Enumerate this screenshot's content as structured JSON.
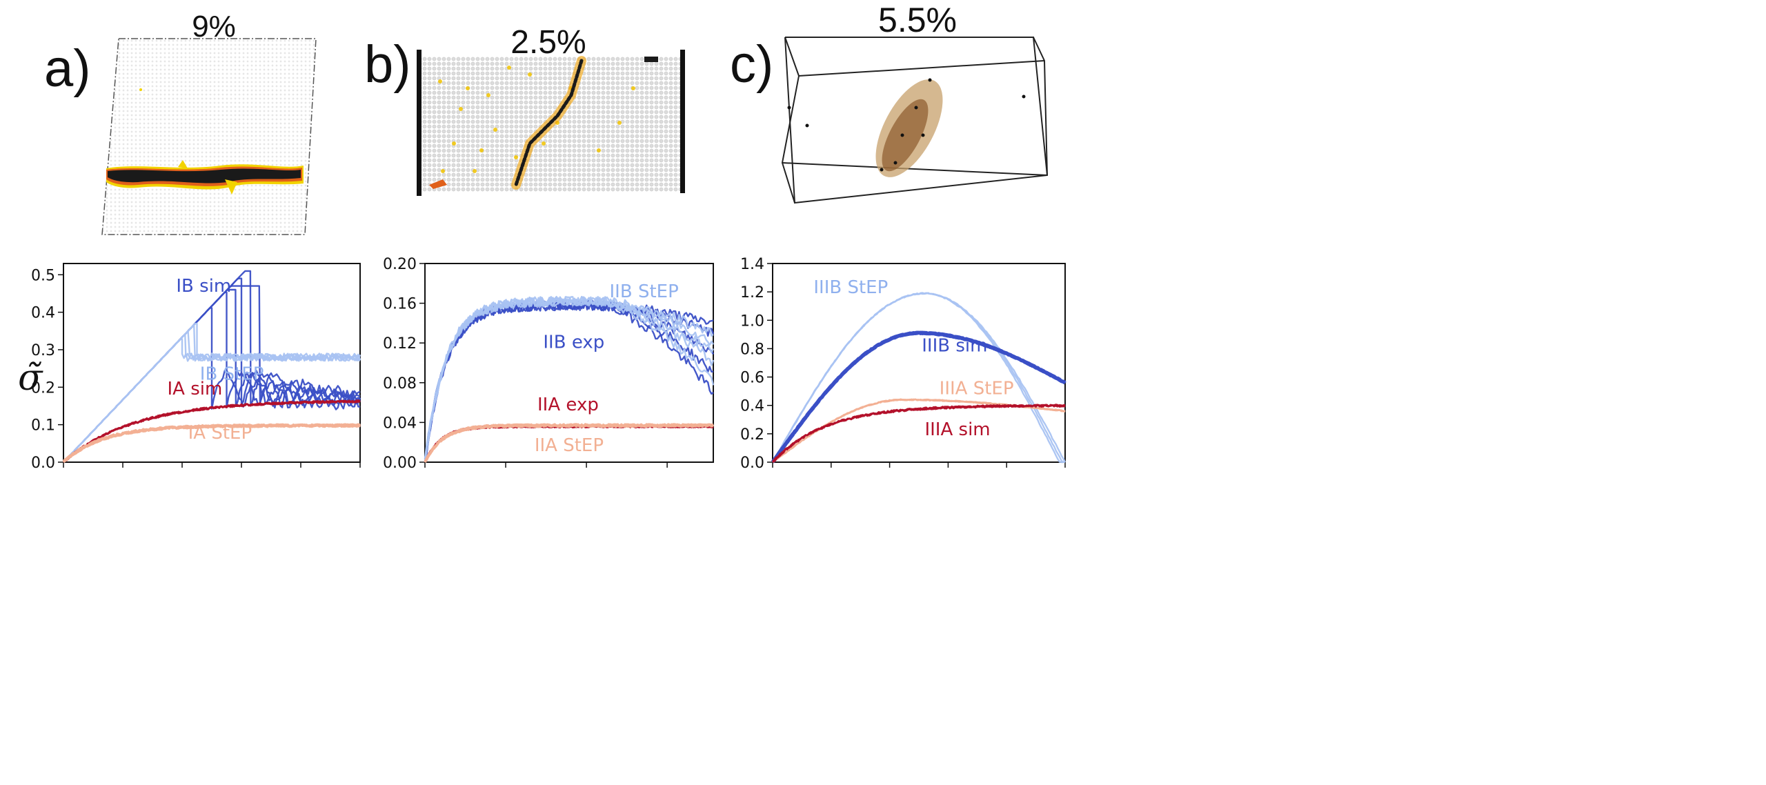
{
  "panels": [
    {
      "letter": "a)",
      "strain": "9%"
    },
    {
      "letter": "b)",
      "strain": "2.5%"
    },
    {
      "letter": "c)",
      "strain": "5.5%"
    }
  ],
  "ylabel": "σ̃",
  "colors": {
    "sim_blue": "#3a4fc6",
    "step_blue": "#a9c3f2",
    "sim_red": "#b3112a",
    "step_salmon": "#f2b093",
    "exp_blue": "#3a4fc6",
    "label_blue_light": "#8fb0ee"
  },
  "chart_data": [
    {
      "type": "line",
      "ylim": [
        0,
        0.53
      ],
      "yticks": [
        "0.0",
        "0.1",
        "0.2",
        "0.3",
        "0.4",
        "0.5"
      ],
      "ytick_values": [
        0,
        0.1,
        0.2,
        0.3,
        0.4,
        0.5
      ],
      "xlim": [
        0,
        1
      ],
      "xticks": [
        0,
        0.2,
        0.4,
        0.6,
        0.8,
        1.0
      ],
      "series": [
        {
          "name": "IB sim",
          "color": "sim_blue",
          "shape": "brittle",
          "peak": [
            0.48,
            0.5,
            0.46,
            0.49,
            0.51,
            0.47
          ],
          "drop_x": [
            0.5,
            0.55,
            0.58,
            0.6,
            0.63,
            0.66
          ],
          "residual": 0.15
        },
        {
          "name": "IB StEP",
          "color": "step_blue",
          "shape": "step_plateau",
          "drop_x": [
            0.4,
            0.41,
            0.42,
            0.44,
            0.45
          ],
          "plateau": 0.28
        },
        {
          "name": "IA sim",
          "color": "sim_red",
          "shape": "saturate",
          "amp": 0.165,
          "rate": 4.2
        },
        {
          "name": "IA StEP",
          "color": "step_salmon",
          "shape": "saturate",
          "amp": 0.098,
          "rate": 7.5
        }
      ],
      "annotations": [
        {
          "text": "IB sim",
          "x": 0.38,
          "y": 0.455,
          "color": "sim_blue"
        },
        {
          "text": "IB StEP",
          "x": 0.46,
          "y": 0.22,
          "color": "label_blue_light"
        },
        {
          "text": "IA sim",
          "x": 0.35,
          "y": 0.18,
          "color": "sim_red"
        },
        {
          "text": "IA StEP",
          "x": 0.42,
          "y": 0.063,
          "color": "step_salmon"
        }
      ]
    },
    {
      "type": "line",
      "ylim": [
        0,
        0.2
      ],
      "yticks": [
        "0.00",
        "0.04",
        "0.08",
        "0.12",
        "0.16",
        "0.20"
      ],
      "ytick_values": [
        0,
        0.04,
        0.08,
        0.12,
        0.16,
        0.2
      ],
      "xlim": [
        0,
        1
      ],
      "xticks": [
        0,
        0.28,
        0.56,
        0.84
      ],
      "series": [
        {
          "name": "IIB exp",
          "color": "exp_blue",
          "shape": "rise_fall",
          "amp": 0.158,
          "end": [
            0.13,
            0.11,
            0.09,
            0.07,
            0.14
          ]
        },
        {
          "name": "IIB StEP",
          "color": "step_blue",
          "shape": "rise_fall",
          "amp": 0.162,
          "end": [
            0.12,
            0.1,
            0.13,
            0.11,
            0.08
          ]
        },
        {
          "name": "IIA exp",
          "color": "sim_red",
          "shape": "saturate",
          "amp": 0.036,
          "rate": 18
        },
        {
          "name": "IIA StEP",
          "color": "step_salmon",
          "shape": "saturate",
          "amp": 0.037,
          "rate": 16
        }
      ],
      "annotations": [
        {
          "text": "IIB StEP",
          "x": 0.64,
          "y": 0.166,
          "color": "label_blue_light"
        },
        {
          "text": "IIB exp",
          "x": 0.41,
          "y": 0.115,
          "color": "sim_blue"
        },
        {
          "text": "IIA exp",
          "x": 0.39,
          "y": 0.052,
          "color": "sim_red"
        },
        {
          "text": "IIA StEP",
          "x": 0.38,
          "y": 0.011,
          "color": "step_salmon"
        }
      ]
    },
    {
      "type": "line",
      "ylim": [
        0,
        1.4
      ],
      "yticks": [
        "0.0",
        "0.2",
        "0.4",
        "0.6",
        "0.8",
        "1.0",
        "1.2",
        "1.4"
      ],
      "ytick_values": [
        0,
        0.2,
        0.4,
        0.6,
        0.8,
        1.0,
        1.2,
        1.4
      ],
      "xlim": [
        0,
        1
      ],
      "xticks": [
        0,
        0.2,
        0.4,
        0.6,
        0.8,
        1.0
      ],
      "series": [
        {
          "name": "IIIB StEP",
          "color": "step_blue",
          "shape": "arch",
          "amp": 1.19,
          "peak_x": 0.52,
          "end_x": [
            0.98,
            0.99,
            1.0
          ]
        },
        {
          "name": "IIIB sim",
          "color": "sim_blue",
          "shape": "hump",
          "amp": 0.91,
          "peak_x": 0.5,
          "end": 0.56
        },
        {
          "name": "IIIA StEP",
          "color": "step_salmon",
          "shape": "hump",
          "amp": 0.44,
          "peak_x": 0.45,
          "end": 0.36
        },
        {
          "name": "IIIA sim",
          "color": "sim_red",
          "shape": "saturate",
          "amp": 0.4,
          "rate": 5.5
        }
      ],
      "annotations": [
        {
          "text": "IIIB StEP",
          "x": 0.14,
          "y": 1.19,
          "color": "label_blue_light"
        },
        {
          "text": "IIIB sim",
          "x": 0.51,
          "y": 0.78,
          "color": "sim_blue"
        },
        {
          "text": "IIIA StEP",
          "x": 0.57,
          "y": 0.48,
          "color": "step_salmon"
        },
        {
          "text": "IIIA sim",
          "x": 0.52,
          "y": 0.19,
          "color": "sim_red"
        }
      ]
    }
  ]
}
